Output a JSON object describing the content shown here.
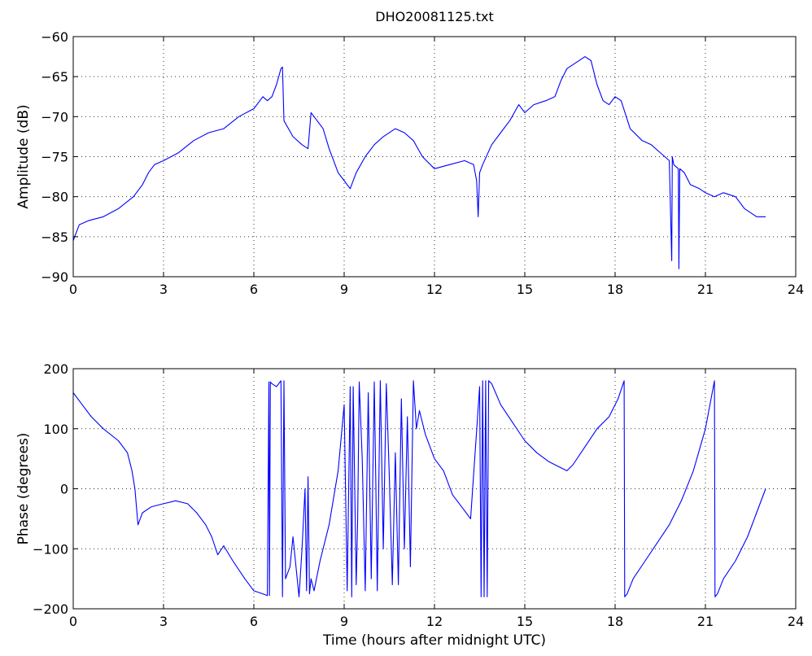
{
  "chart_data": [
    {
      "type": "line",
      "title": "DHO20081125.txt",
      "xlabel": "",
      "ylabel": "Amplitude (dB)",
      "xlim": [
        0,
        24
      ],
      "ylim": [
        -90,
        -60
      ],
      "xticks": [
        0,
        3,
        6,
        9,
        12,
        15,
        18,
        21,
        24
      ],
      "yticks": [
        -90,
        -85,
        -80,
        -75,
        -70,
        -65,
        -60
      ],
      "grid": true,
      "series": [
        {
          "color": "#0000ff",
          "x": [
            0,
            0.05,
            0.2,
            0.5,
            1.0,
            1.5,
            2.0,
            2.3,
            2.5,
            2.7,
            3.0,
            3.5,
            4.0,
            4.5,
            5.0,
            5.5,
            6.0,
            6.2,
            6.3,
            6.45,
            6.6,
            6.75,
            6.9,
            6.95,
            7.0,
            7.3,
            7.6,
            7.8,
            7.9,
            8.0,
            8.3,
            8.5,
            8.8,
            9.0,
            9.2,
            9.4,
            9.7,
            10.0,
            10.3,
            10.7,
            11.0,
            11.3,
            11.6,
            12.0,
            12.5,
            13.0,
            13.3,
            13.4,
            13.45,
            13.5,
            13.6,
            13.9,
            14.2,
            14.5,
            14.8,
            15.0,
            15.3,
            15.7,
            16.0,
            16.2,
            16.4,
            16.6,
            17.0,
            17.2,
            17.4,
            17.6,
            17.8,
            18.0,
            18.2,
            18.5,
            18.9,
            19.2,
            19.5,
            19.8,
            19.88,
            19.9,
            19.95,
            20.1,
            20.12,
            20.15,
            20.3,
            20.5,
            20.8,
            21.0,
            21.3,
            21.6,
            22.0,
            22.3,
            22.5,
            22.7,
            23.0
          ],
          "y": [
            -85.5,
            -85,
            -83.5,
            -83,
            -82.5,
            -81.5,
            -80,
            -78.5,
            -77,
            -76,
            -75.5,
            -74.5,
            -73,
            -72,
            -71.5,
            -70,
            -69,
            -68,
            -67.5,
            -68,
            -67.5,
            -66,
            -64,
            -63.8,
            -70.5,
            -72.5,
            -73.5,
            -74,
            -69.5,
            -70,
            -71.5,
            -74,
            -77,
            -78,
            -79,
            -77,
            -75,
            -73.5,
            -72.5,
            -71.5,
            -72,
            -73,
            -75,
            -76.5,
            -76,
            -75.5,
            -76,
            -78,
            -82.5,
            -77,
            -76,
            -73.5,
            -72,
            -70.5,
            -68.5,
            -69.5,
            -68.5,
            -68,
            -67.5,
            -65.5,
            -64,
            -63.5,
            -62.5,
            -63,
            -66,
            -68,
            -68.5,
            -67.5,
            -68,
            -71.5,
            -73,
            -73.5,
            -74.5,
            -75.5,
            -88,
            -75,
            -76,
            -76.5,
            -89,
            -76.5,
            -77,
            -78.5,
            -79,
            -79.5,
            -80,
            -79.5,
            -80,
            -81.5,
            -82,
            -82.5,
            -82.5
          ]
        }
      ]
    },
    {
      "type": "line",
      "title": "",
      "xlabel": "Time (hours after midnight UTC)",
      "ylabel": "Phase (degrees)",
      "xlim": [
        0,
        24
      ],
      "ylim": [
        -200,
        200
      ],
      "xticks": [
        0,
        3,
        6,
        9,
        12,
        15,
        18,
        21,
        24
      ],
      "yticks": [
        -200,
        -100,
        0,
        100,
        200
      ],
      "grid": true,
      "series": [
        {
          "color": "#0000ff",
          "x": [
            0,
            0.3,
            0.6,
            1.0,
            1.5,
            1.8,
            1.95,
            2.05,
            2.15,
            2.3,
            2.6,
            3.0,
            3.4,
            3.8,
            4.1,
            4.4,
            4.6,
            4.8,
            5.0,
            5.3,
            5.7,
            6.0,
            6.3,
            6.45,
            6.5,
            6.52,
            6.55,
            6.6,
            6.75,
            6.9,
            6.95,
            7.0,
            7.05,
            7.2,
            7.3,
            7.5,
            7.6,
            7.7,
            7.75,
            7.8,
            7.85,
            7.9,
            8.0,
            8.2,
            8.5,
            8.8,
            9.0,
            9.1,
            9.2,
            9.25,
            9.3,
            9.4,
            9.45,
            9.5,
            9.6,
            9.7,
            9.8,
            9.9,
            10.0,
            10.05,
            10.1,
            10.2,
            10.3,
            10.4,
            10.5,
            10.6,
            10.7,
            10.8,
            10.9,
            11.0,
            11.1,
            11.2,
            11.3,
            11.4,
            11.5,
            11.7,
            12.0,
            12.3,
            12.6,
            12.9,
            13.2,
            13.5,
            13.55,
            13.6,
            13.65,
            13.7,
            13.75,
            13.8,
            13.9,
            14.2,
            14.6,
            15.0,
            15.4,
            15.8,
            16.2,
            16.4,
            16.6,
            17.0,
            17.4,
            17.8,
            18.1,
            18.3,
            18.32,
            18.4,
            18.6,
            19.0,
            19.4,
            19.8,
            20.2,
            20.6,
            21.0,
            21.3,
            21.32,
            21.4,
            21.6,
            22.0,
            22.4,
            22.7,
            23.0
          ],
          "y": [
            160,
            140,
            120,
            100,
            80,
            60,
            30,
            0,
            -60,
            -40,
            -30,
            -25,
            -20,
            -25,
            -40,
            -60,
            -80,
            -110,
            -95,
            -120,
            -150,
            -170,
            -175,
            -178,
            178,
            -178,
            178,
            175,
            170,
            180,
            -180,
            180,
            -150,
            -130,
            -80,
            -180,
            -100,
            0,
            -170,
            20,
            -175,
            -150,
            -170,
            -120,
            -60,
            30,
            140,
            -170,
            170,
            -180,
            170,
            -160,
            -50,
            178,
            50,
            -170,
            160,
            -150,
            178,
            10,
            -170,
            180,
            -100,
            175,
            20,
            -160,
            60,
            -160,
            150,
            -100,
            120,
            -130,
            180,
            100,
            130,
            90,
            50,
            30,
            -10,
            -30,
            -50,
            170,
            -180,
            180,
            -180,
            180,
            -180,
            180,
            175,
            140,
            110,
            80,
            60,
            45,
            35,
            30,
            40,
            70,
            100,
            120,
            150,
            180,
            -180,
            -175,
            -150,
            -120,
            -90,
            -60,
            -20,
            30,
            100,
            180,
            -180,
            -175,
            -150,
            -120,
            -80,
            -40,
            0
          ]
        }
      ]
    }
  ]
}
